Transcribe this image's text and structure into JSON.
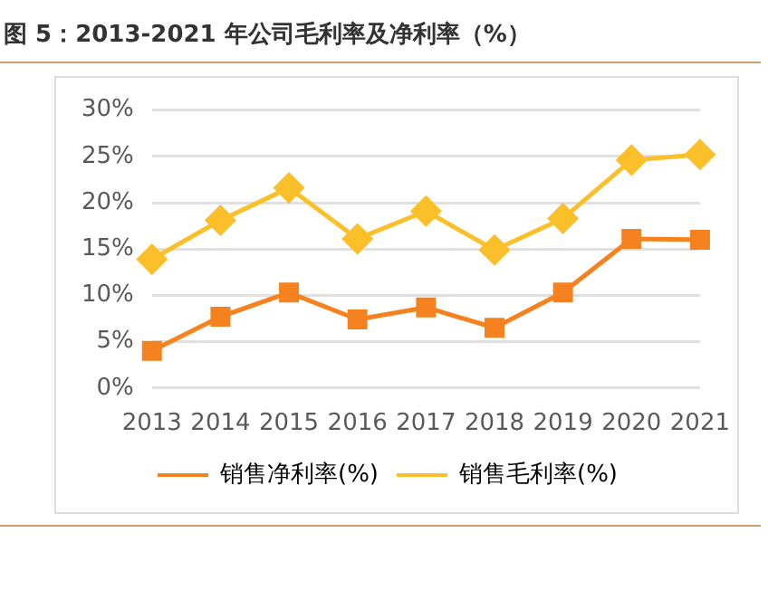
{
  "chart_data": {
    "type": "line",
    "title": "图 5：2013-2021 年公司毛利率及净利率（%）",
    "categories": [
      "2013",
      "2014",
      "2015",
      "2016",
      "2017",
      "2018",
      "2019",
      "2020",
      "2021"
    ],
    "series": [
      {
        "name": "销售净利率(%)",
        "color": "#f5821f",
        "marker": "square",
        "values": [
          4.0,
          7.7,
          10.3,
          7.4,
          8.7,
          6.5,
          10.3,
          16.1,
          16.0
        ]
      },
      {
        "name": "销售毛利率(%)",
        "color": "#fbbf2a",
        "marker": "diamond",
        "values": [
          13.9,
          18.1,
          21.6,
          16.1,
          19.1,
          14.9,
          18.3,
          24.6,
          25.2
        ]
      }
    ],
    "ylim": [
      0,
      30
    ],
    "yticks": [
      {
        "value": 0,
        "label": "0%"
      },
      {
        "value": 5,
        "label": "5%"
      },
      {
        "value": 10,
        "label": "10%"
      },
      {
        "value": 15,
        "label": "15%"
      },
      {
        "value": 20,
        "label": "20%"
      },
      {
        "value": 25,
        "label": "25%"
      },
      {
        "value": 30,
        "label": "30%"
      }
    ],
    "grid": "y",
    "legend": "bottom",
    "line_style": "solid"
  }
}
